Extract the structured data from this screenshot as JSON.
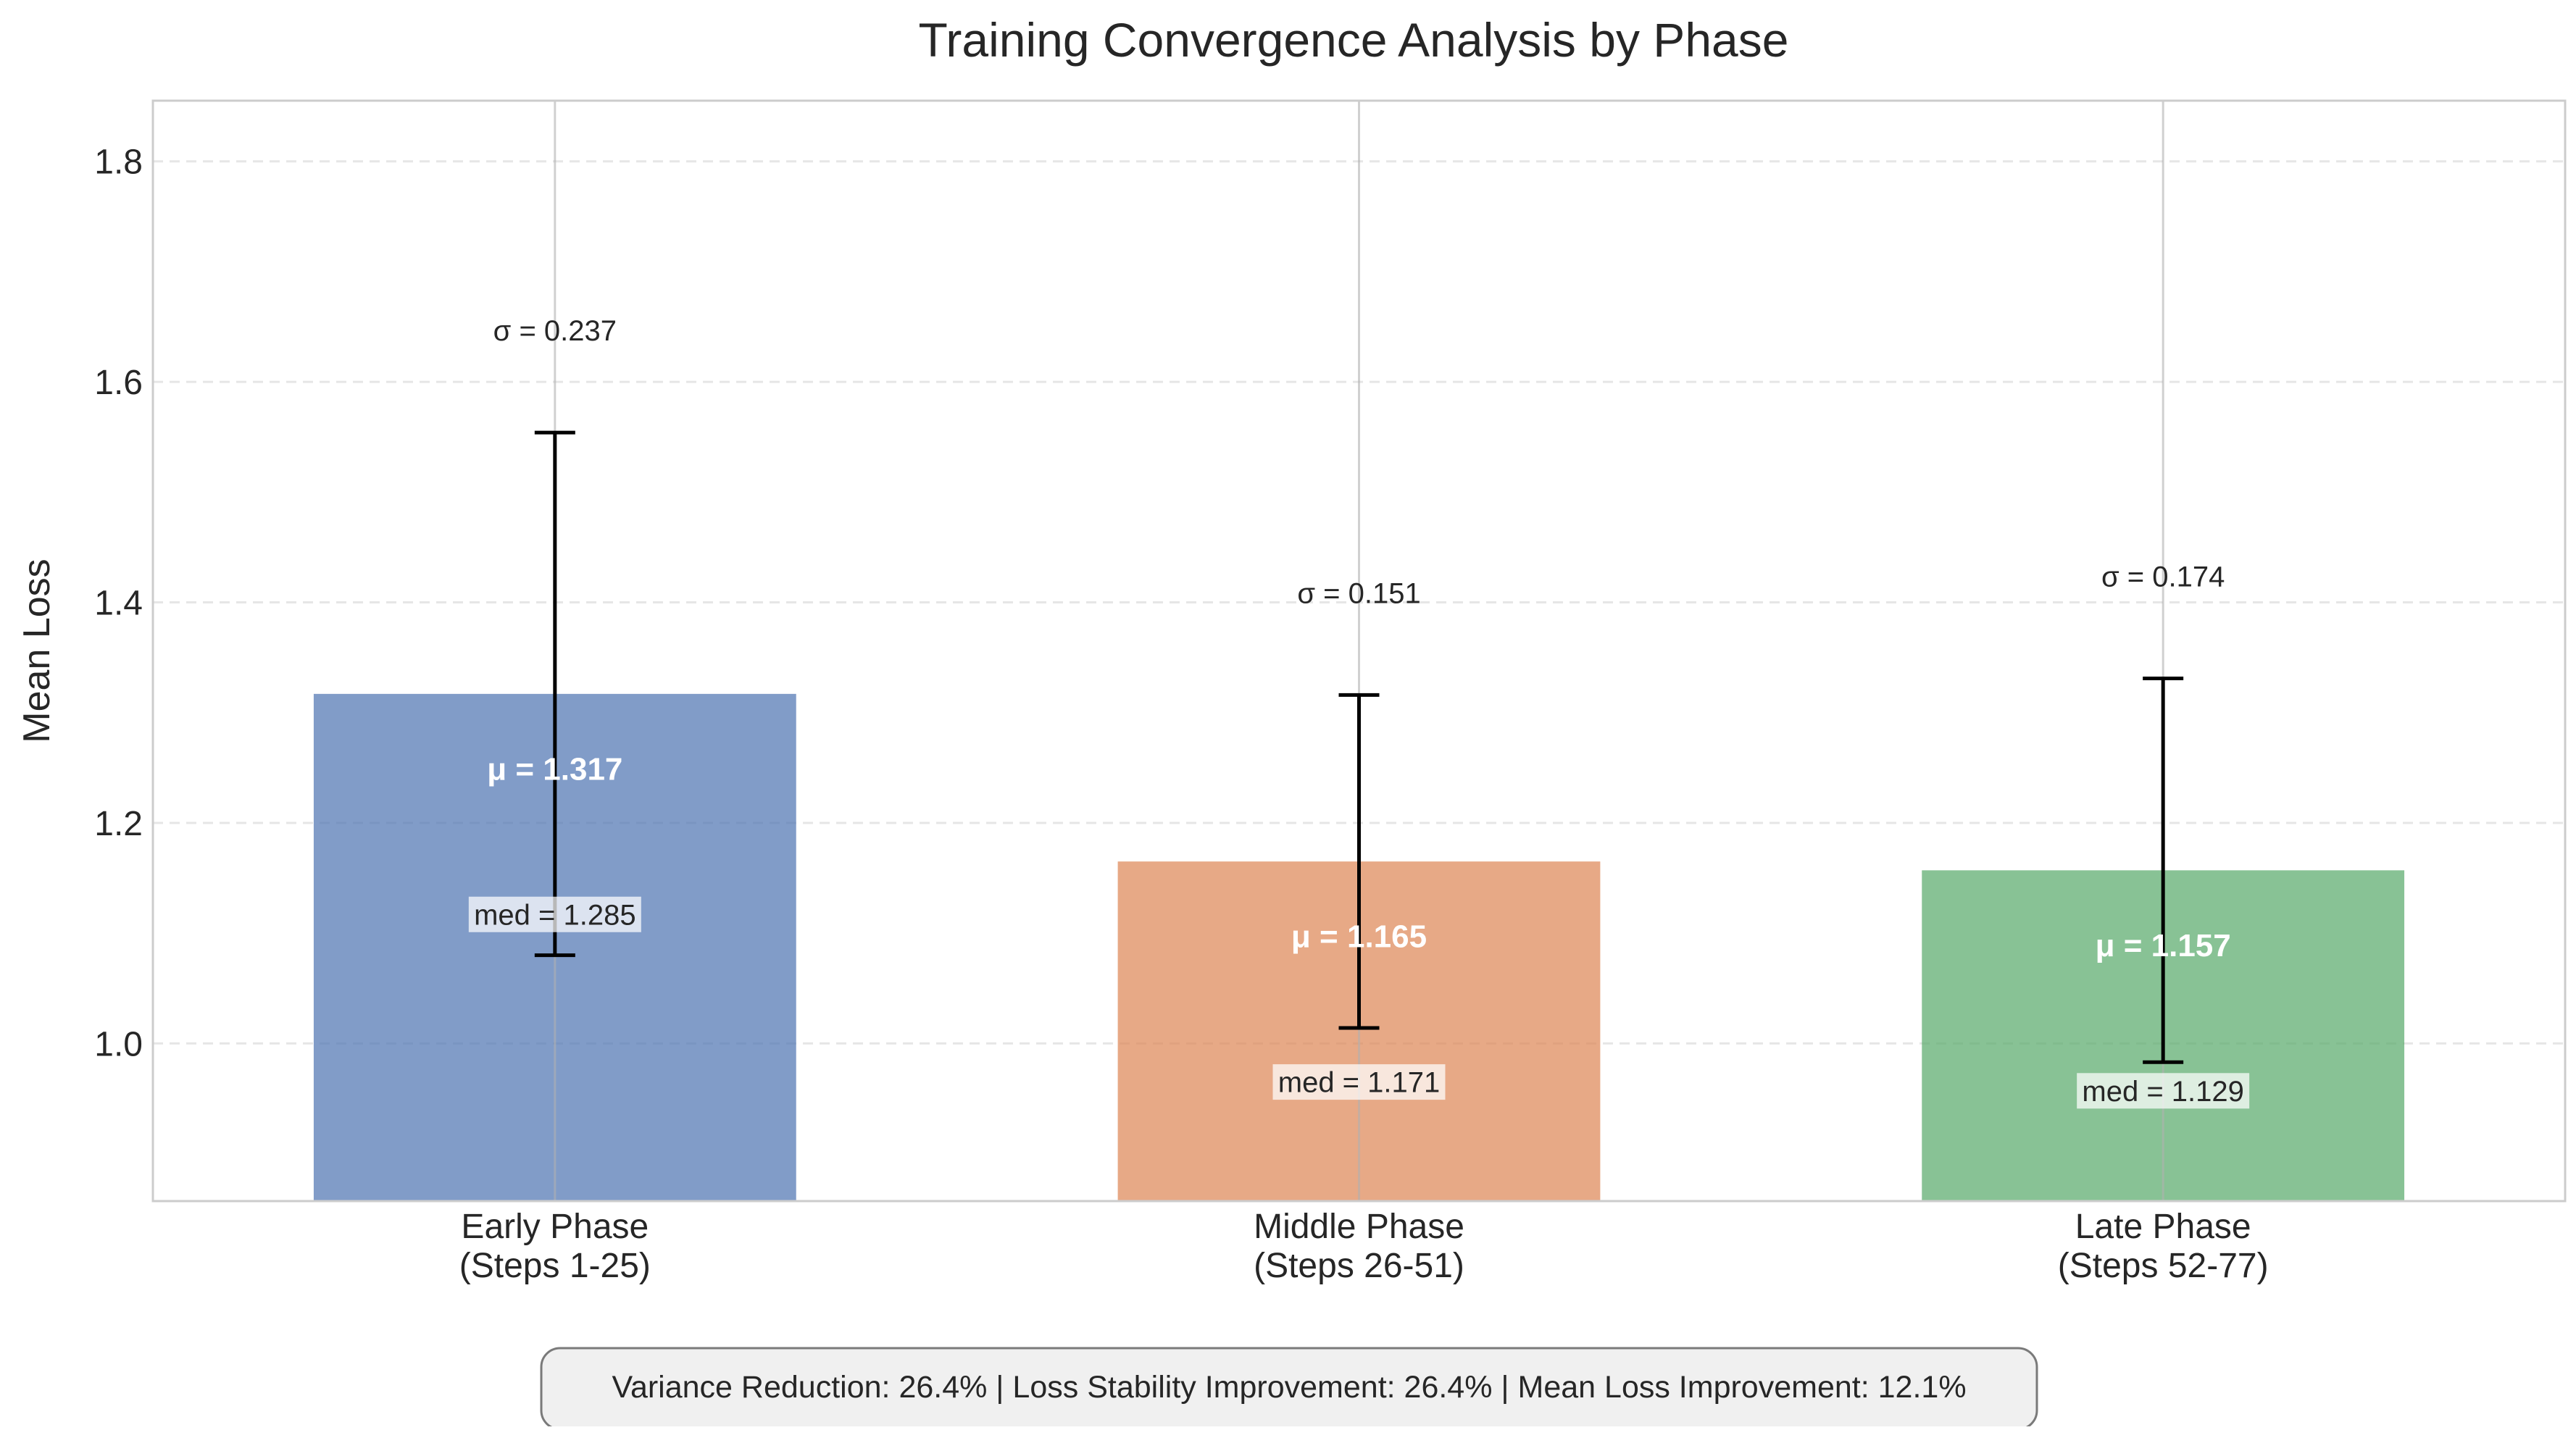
{
  "chart_data": {
    "type": "bar",
    "title": "Training Convergence Analysis by Phase",
    "xlabel": "",
    "ylabel": "Mean Loss",
    "ylim": [
      0.857,
      1.855
    ],
    "yticks": [
      1.0,
      1.2,
      1.4,
      1.6,
      1.8
    ],
    "ytick_labels": [
      "1.0",
      "1.2",
      "1.4",
      "1.6",
      "1.8"
    ],
    "grid": true,
    "categories": [
      [
        "Early Phase",
        "(Steps 1-25)"
      ],
      [
        "Middle Phase",
        "(Steps 26-51)"
      ],
      [
        "Late Phase",
        "(Steps 52-77)"
      ]
    ],
    "values": [
      1.317,
      1.165,
      1.157
    ],
    "std": [
      0.237,
      0.151,
      0.174
    ],
    "medians": [
      1.285,
      1.171,
      1.129
    ],
    "mean_labels": [
      "μ = 1.317",
      "μ = 1.165",
      "μ = 1.157"
    ],
    "std_labels": [
      "σ = 0.237",
      "σ = 0.151",
      "σ = 0.174"
    ],
    "median_labels": [
      "med = 1.285",
      "med = 1.171",
      "med = 1.129"
    ],
    "colors": [
      "#4c72b0",
      "#dd8452",
      "#55a868"
    ],
    "summary": "Variance Reduction: 26.4% | Loss Stability Improvement: 26.4% | Mean Loss Improvement: 12.1%"
  }
}
